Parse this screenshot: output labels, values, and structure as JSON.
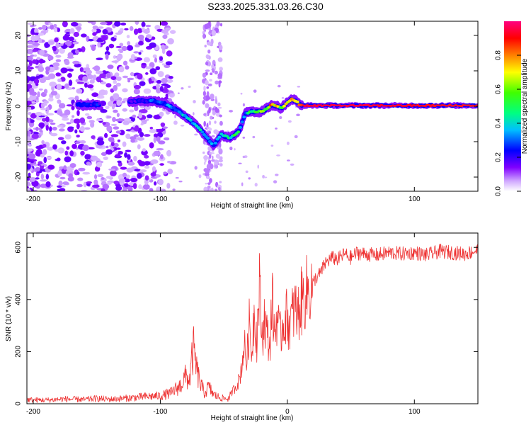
{
  "title": "S233.2025.331.03.26.C30",
  "chart_data": [
    {
      "type": "heatmap",
      "name": "spectrogram",
      "xlabel": "Height of straight line (km)",
      "ylabel": "Frequency (Hz)",
      "xlim": [
        -205,
        150
      ],
      "ylim": [
        -24,
        24
      ],
      "xticks": [
        -200,
        -100,
        0,
        100
      ],
      "xtick_labels": [
        "-200",
        "-100",
        "0",
        "100"
      ],
      "yticks": [
        -20,
        -10,
        0,
        10,
        20
      ],
      "ytick_labels": [
        "-20",
        "-10",
        "0",
        "10",
        "20"
      ],
      "colorbar": {
        "label": "Normalized spectral amplitude",
        "range": [
          0,
          1
        ],
        "ticks": [
          0.0,
          0.2,
          0.4,
          0.6,
          0.8
        ],
        "tick_labels": [
          "0.0",
          "0.2",
          "0.4",
          "0.6",
          "0.8"
        ],
        "colors": [
          "#ffffff",
          "#cc99ff",
          "#6600ff",
          "#0000ff",
          "#00ffff",
          "#00ff00",
          "#ffff00",
          "#ff8000",
          "#ff0000",
          "#ff0080"
        ]
      },
      "ridge": {
        "heights_km": [
          -160,
          -150,
          -120,
          -105,
          -95,
          -85,
          -78,
          -70,
          -63,
          -58,
          -52,
          -45,
          -38,
          -33,
          -28,
          -20,
          -12,
          -5,
          0,
          3,
          7,
          10,
          15,
          30,
          60,
          100,
          150
        ],
        "frequency_hz": [
          0.5,
          0.5,
          1.5,
          1.5,
          0.5,
          -1.5,
          -3.5,
          -6,
          -9,
          -11,
          -8,
          -9,
          -7,
          -2,
          -1.5,
          -1.5,
          0.5,
          -0.5,
          1,
          2,
          1.5,
          0.3,
          0.2,
          0.2,
          0.2,
          0.2,
          0.2
        ],
        "amplitude": [
          0.25,
          0.25,
          0.2,
          0.3,
          0.35,
          0.35,
          0.4,
          0.45,
          0.4,
          0.35,
          0.45,
          0.5,
          0.5,
          0.35,
          0.55,
          0.7,
          0.8,
          0.6,
          0.7,
          0.75,
          0.8,
          0.95,
          0.95,
          0.95,
          0.95,
          0.9,
          0.85
        ]
      }
    },
    {
      "type": "line",
      "name": "snr",
      "xlabel": "Height of straight line (km)",
      "ylabel": "SNR (10 * v/v)",
      "xlim": [
        -205,
        150
      ],
      "ylim": [
        0,
        655
      ],
      "xticks": [
        -200,
        -100,
        0,
        100
      ],
      "xtick_labels": [
        "-200",
        "-100",
        "0",
        "100"
      ],
      "yticks": [
        0,
        200,
        400,
        600
      ],
      "ytick_labels": [
        "0",
        "200",
        "400",
        "600"
      ],
      "color": "#ee3333",
      "series": [
        {
          "name": "SNR",
          "x": [
            -205,
            -190,
            -175,
            -160,
            -150,
            -140,
            -125,
            -110,
            -100,
            -92,
            -88,
            -84,
            -80,
            -77,
            -74,
            -71,
            -68,
            -65,
            -62,
            -58,
            -54,
            -50,
            -46,
            -43,
            -40,
            -38,
            -36,
            -34,
            -32,
            -30,
            -28,
            -26,
            -24,
            -22,
            -20,
            -18,
            -16,
            -14,
            -12,
            -10,
            -8,
            -6,
            -4,
            -2,
            0,
            2,
            4,
            6,
            8,
            10,
            14,
            18,
            22,
            26,
            30,
            35,
            40,
            45,
            50,
            55,
            60,
            70,
            80,
            90,
            100,
            110,
            120,
            130,
            140,
            150
          ],
          "y": [
            15,
            14,
            18,
            16,
            20,
            17,
            22,
            28,
            30,
            40,
            55,
            70,
            105,
            90,
            210,
            120,
            70,
            40,
            65,
            35,
            25,
            20,
            20,
            50,
            70,
            90,
            140,
            230,
            160,
            300,
            190,
            370,
            240,
            450,
            250,
            330,
            270,
            210,
            400,
            260,
            350,
            250,
            300,
            330,
            330,
            300,
            340,
            370,
            330,
            380,
            420,
            440,
            480,
            500,
            540,
            560,
            555,
            575,
            560,
            580,
            575,
            570,
            580,
            575,
            580,
            570,
            585,
            580,
            575,
            590
          ]
        }
      ]
    }
  ]
}
